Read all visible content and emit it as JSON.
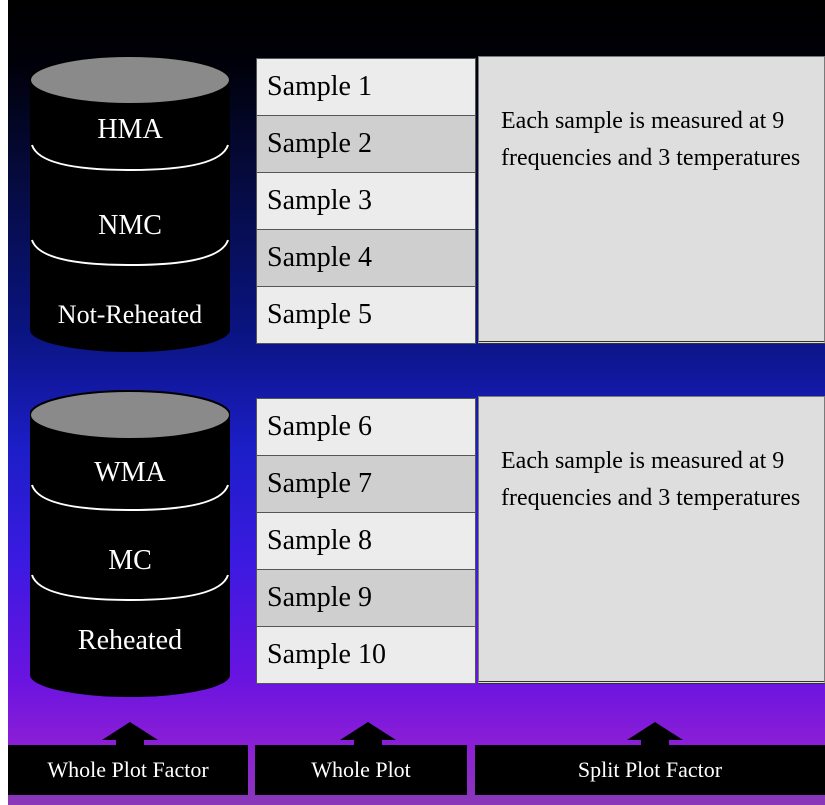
{
  "top_group": {
    "cylinder_labels": [
      "HMA",
      "NMC",
      "Not-Reheated"
    ],
    "samples": [
      "Sample 1",
      "Sample 2",
      "Sample 3",
      "Sample 4",
      "Sample 5"
    ],
    "note": "Each sample is measured at 9 frequencies and 3 temperatures"
  },
  "bottom_group": {
    "cylinder_labels": [
      "WMA",
      "MC",
      "Reheated"
    ],
    "samples": [
      "Sample 6",
      "Sample 7",
      "Sample 8",
      "Sample 9",
      "Sample 10"
    ],
    "note": "Each sample is measured at 9 frequencies and 3 temperatures"
  },
  "footer_labels": {
    "whole_plot_factor": "Whole Plot Factor",
    "whole_plot": "Whole Plot",
    "split_plot_factor": "Split Plot Factor"
  },
  "colors": {
    "cylinder_body": "#000000",
    "cylinder_top": "#8a8a8a",
    "sample_light": "#ececec",
    "sample_dark": "#cfcfcf",
    "note_fill": "#dedede",
    "label_box": "#000000"
  }
}
